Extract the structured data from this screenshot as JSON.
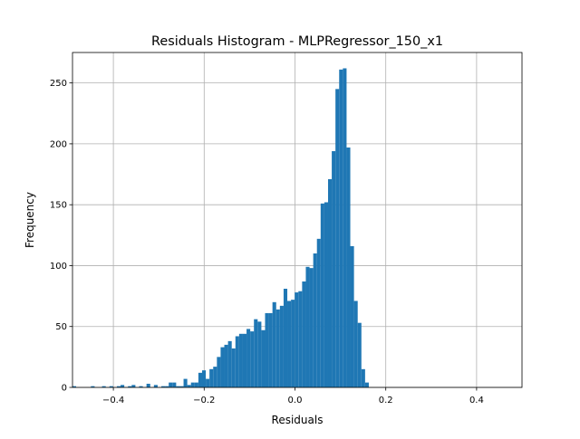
{
  "chart_data": {
    "type": "bar",
    "title": "Residuals Histogram - MLPRegressor_150_x1",
    "xlabel": "Residuals",
    "ylabel": "Frequency",
    "xlim": [
      -0.49,
      0.5
    ],
    "ylim": [
      0,
      275
    ],
    "grid": true,
    "bar_color": "#1f77b4",
    "x_ticks": [
      -0.4,
      -0.2,
      0.0,
      0.2,
      0.4
    ],
    "x_tick_labels": [
      "−0.4",
      "−0.2",
      "0.0",
      "0.2",
      "0.4"
    ],
    "y_ticks": [
      0,
      50,
      100,
      150,
      200,
      250
    ],
    "y_tick_labels": [
      "0",
      "50",
      "100",
      "150",
      "200",
      "250"
    ],
    "bin_width": 0.00816,
    "bin_start": -0.4902,
    "counts": [
      1,
      0,
      0,
      0,
      0,
      1,
      0,
      0,
      1,
      0,
      1,
      0,
      1,
      2,
      0,
      1,
      2,
      0,
      1,
      0,
      3,
      0,
      2,
      0,
      1,
      1,
      4,
      4,
      1,
      1,
      7,
      2,
      4,
      4,
      12,
      14,
      7,
      15,
      17,
      25,
      33,
      35,
      38,
      32,
      42,
      44,
      44,
      48,
      46,
      56,
      54,
      47,
      61,
      61,
      70,
      64,
      67,
      81,
      71,
      72,
      78,
      79,
      87,
      99,
      98,
      110,
      122,
      151,
      152,
      171,
      194,
      245,
      261,
      262,
      197,
      116,
      71,
      53,
      15,
      4
    ]
  }
}
